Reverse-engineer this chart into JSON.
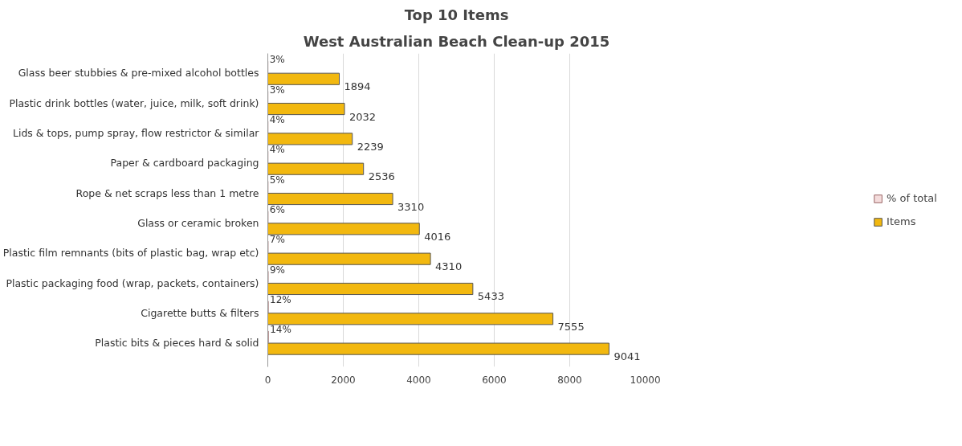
{
  "chart_data": {
    "type": "bar",
    "orientation": "horizontal",
    "title": "Top 10 Items",
    "subtitle": "West Australian Beach Clean-up 2015",
    "categories": [
      "Glass beer stubbies & pre-mixed alcohol bottles",
      "Plastic drink bottles (water, juice, milk, soft drink)",
      "Lids & tops, pump spray, flow restrictor & similar",
      "Paper & cardboard packaging",
      "Rope & net scraps less than 1 metre",
      "Glass or ceramic broken",
      "Plastic film remnants (bits of plastic bag, wrap etc)",
      "Plastic packaging food (wrap, packets, containers)",
      "Cigarette butts & filters",
      "Plastic bits & pieces hard & solid"
    ],
    "series": [
      {
        "name": "% of total",
        "color": "#f4dcdc",
        "values": [
          3,
          3,
          4,
          4,
          5,
          6,
          7,
          9,
          12,
          14
        ],
        "value_labels": [
          "3%",
          "3%",
          "4%",
          "4%",
          "5%",
          "6%",
          "7%",
          "9%",
          "12%",
          "14%"
        ]
      },
      {
        "name": "Items",
        "color": "#f2b80f",
        "values": [
          1894,
          2032,
          2239,
          2536,
          3310,
          4016,
          4310,
          5433,
          7555,
          9041
        ],
        "value_labels": [
          "1894",
          "2032",
          "2239",
          "2536",
          "3310",
          "4016",
          "4310",
          "5433",
          "7555",
          "9041"
        ]
      }
    ],
    "xlim": [
      0,
      10000
    ],
    "xticks": [
      0,
      2000,
      4000,
      6000,
      8000,
      10000
    ],
    "grid": "x",
    "legend": "right"
  }
}
